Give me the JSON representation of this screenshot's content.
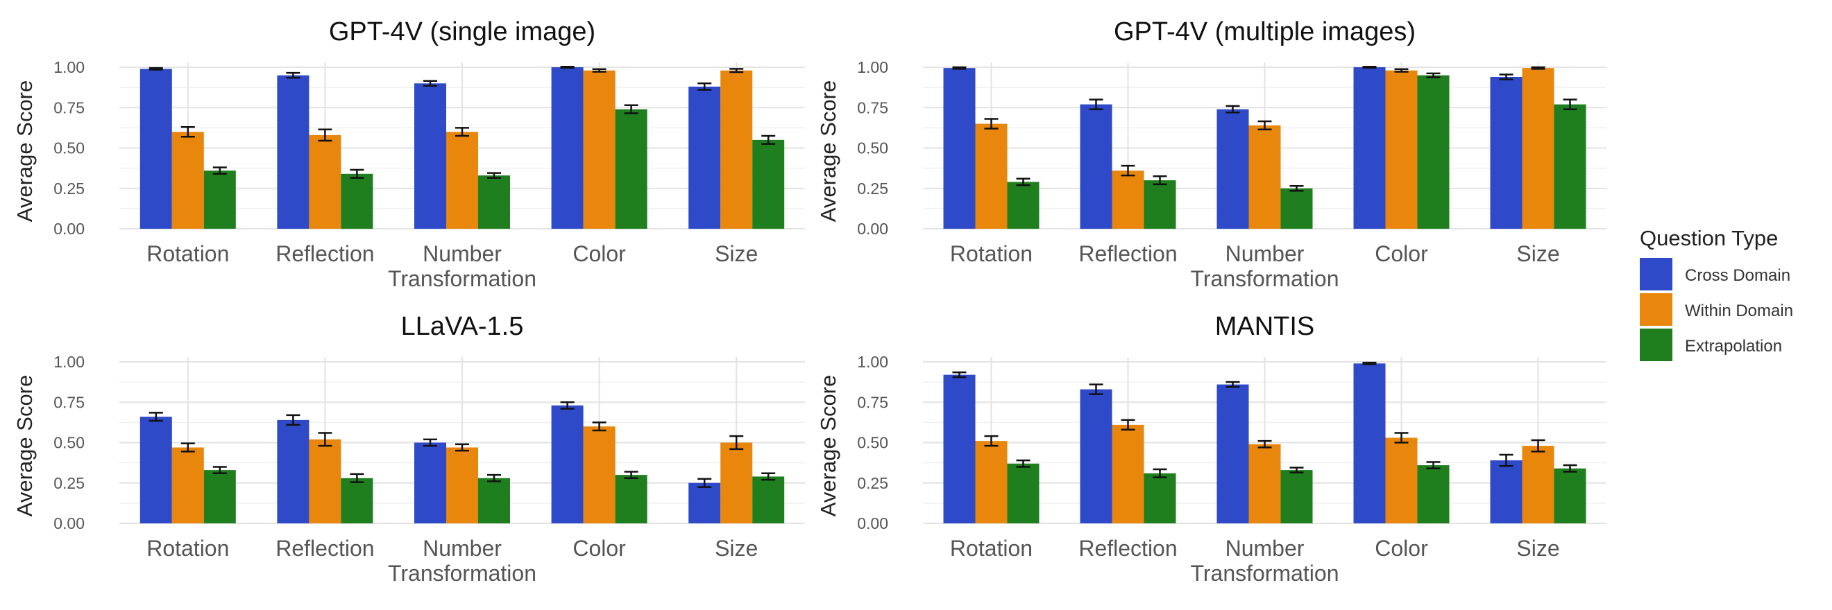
{
  "chart_data": [
    {
      "type": "bar",
      "title": "GPT-4V (single image)",
      "xlabel": "",
      "ylabel": "Average Score",
      "ylim": [
        0,
        1.05
      ],
      "yticks": [
        "0.00",
        "0.25",
        "0.50",
        "0.75",
        "1.00"
      ],
      "categories": [
        "Rotation",
        "Reflection",
        "Number\nTransformation",
        "Color",
        "Size"
      ],
      "series": [
        {
          "name": "Cross Domain",
          "values": [
            0.99,
            0.95,
            0.9,
            1.0,
            0.88
          ],
          "errors": [
            0.005,
            0.015,
            0.015,
            0.003,
            0.02
          ]
        },
        {
          "name": "Within Domain",
          "values": [
            0.6,
            0.58,
            0.6,
            0.98,
            0.98
          ],
          "errors": [
            0.03,
            0.035,
            0.025,
            0.008,
            0.01
          ]
        },
        {
          "name": "Extrapolation",
          "values": [
            0.36,
            0.34,
            0.33,
            0.74,
            0.55
          ],
          "errors": [
            0.02,
            0.025,
            0.015,
            0.025,
            0.025
          ]
        }
      ]
    },
    {
      "type": "bar",
      "title": "GPT-4V (multiple images)",
      "xlabel": "",
      "ylabel": "Average Score",
      "ylim": [
        0,
        1.05
      ],
      "yticks": [
        "0.00",
        "0.25",
        "0.50",
        "0.75",
        "1.00"
      ],
      "categories": [
        "Rotation",
        "Reflection",
        "Number\nTransformation",
        "Color",
        "Size"
      ],
      "series": [
        {
          "name": "Cross Domain",
          "values": [
            0.995,
            0.77,
            0.74,
            1.0,
            0.94
          ],
          "errors": [
            0.005,
            0.03,
            0.02,
            0.003,
            0.015
          ]
        },
        {
          "name": "Within Domain",
          "values": [
            0.65,
            0.36,
            0.64,
            0.98,
            0.995
          ],
          "errors": [
            0.03,
            0.03,
            0.025,
            0.008,
            0.005
          ]
        },
        {
          "name": "Extrapolation",
          "values": [
            0.29,
            0.3,
            0.25,
            0.95,
            0.77
          ],
          "errors": [
            0.02,
            0.025,
            0.015,
            0.012,
            0.03
          ]
        }
      ]
    },
    {
      "type": "bar",
      "title": "LLaVA-1.5",
      "xlabel": "",
      "ylabel": "Average Score",
      "ylim": [
        0,
        1.05
      ],
      "yticks": [
        "0.00",
        "0.25",
        "0.50",
        "0.75",
        "1.00"
      ],
      "categories": [
        "Rotation",
        "Reflection",
        "Number\nTransformation",
        "Color",
        "Size"
      ],
      "series": [
        {
          "name": "Cross Domain",
          "values": [
            0.66,
            0.64,
            0.5,
            0.73,
            0.25
          ],
          "errors": [
            0.025,
            0.03,
            0.02,
            0.02,
            0.025
          ]
        },
        {
          "name": "Within Domain",
          "values": [
            0.47,
            0.52,
            0.47,
            0.6,
            0.5
          ],
          "errors": [
            0.025,
            0.04,
            0.02,
            0.025,
            0.04
          ]
        },
        {
          "name": "Extrapolation",
          "values": [
            0.33,
            0.28,
            0.28,
            0.3,
            0.29
          ],
          "errors": [
            0.02,
            0.025,
            0.02,
            0.02,
            0.02
          ]
        }
      ]
    },
    {
      "type": "bar",
      "title": "MANTIS",
      "xlabel": "",
      "ylabel": "Average Score",
      "ylim": [
        0,
        1.05
      ],
      "yticks": [
        "0.00",
        "0.25",
        "0.50",
        "0.75",
        "1.00"
      ],
      "categories": [
        "Rotation",
        "Reflection",
        "Number\nTransformation",
        "Color",
        "Size"
      ],
      "series": [
        {
          "name": "Cross Domain",
          "values": [
            0.92,
            0.83,
            0.86,
            0.99,
            0.39
          ],
          "errors": [
            0.015,
            0.03,
            0.015,
            0.005,
            0.035
          ]
        },
        {
          "name": "Within Domain",
          "values": [
            0.51,
            0.61,
            0.49,
            0.53,
            0.48
          ],
          "errors": [
            0.03,
            0.03,
            0.02,
            0.03,
            0.035
          ]
        },
        {
          "name": "Extrapolation",
          "values": [
            0.37,
            0.31,
            0.33,
            0.36,
            0.34
          ],
          "errors": [
            0.02,
            0.025,
            0.015,
            0.02,
            0.02
          ]
        }
      ]
    }
  ],
  "legend": {
    "title": "Question Type",
    "placement": "right",
    "items": [
      {
        "label": "Cross Domain",
        "color": "#2E4AC8"
      },
      {
        "label": "Within Domain",
        "color": "#E8870C"
      },
      {
        "label": "Extrapolation",
        "color": "#1F7F1F"
      }
    ]
  }
}
